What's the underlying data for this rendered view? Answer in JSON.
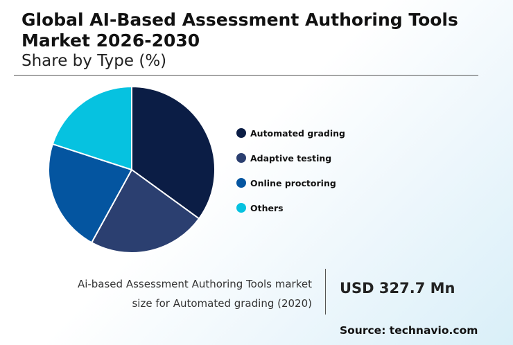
{
  "header": {
    "title": "Global AI-Based Assessment Authoring Tools Market 2026-2030",
    "subtitle": "Share by Type (%)"
  },
  "chart_data": {
    "type": "pie",
    "title": "Global AI-Based Assessment Authoring Tools Market 2026-2030",
    "subtitle": "Share by Type (%)",
    "categories": [
      "Automated grading",
      "Adaptive testing",
      "Online proctoring",
      "Others"
    ],
    "values": [
      35,
      23,
      22,
      20
    ],
    "colors": [
      "#0b1d45",
      "#2b3f70",
      "#0455a0",
      "#06c2e0"
    ],
    "start_angle_deg": 0,
    "direction": "clockwise",
    "legend_position": "right"
  },
  "callout": {
    "label": "Ai-based Assessment Authoring Tools market size for Automated grading (2020)",
    "value": "USD 327.7 Mn"
  },
  "source": "Source: technavio.com"
}
